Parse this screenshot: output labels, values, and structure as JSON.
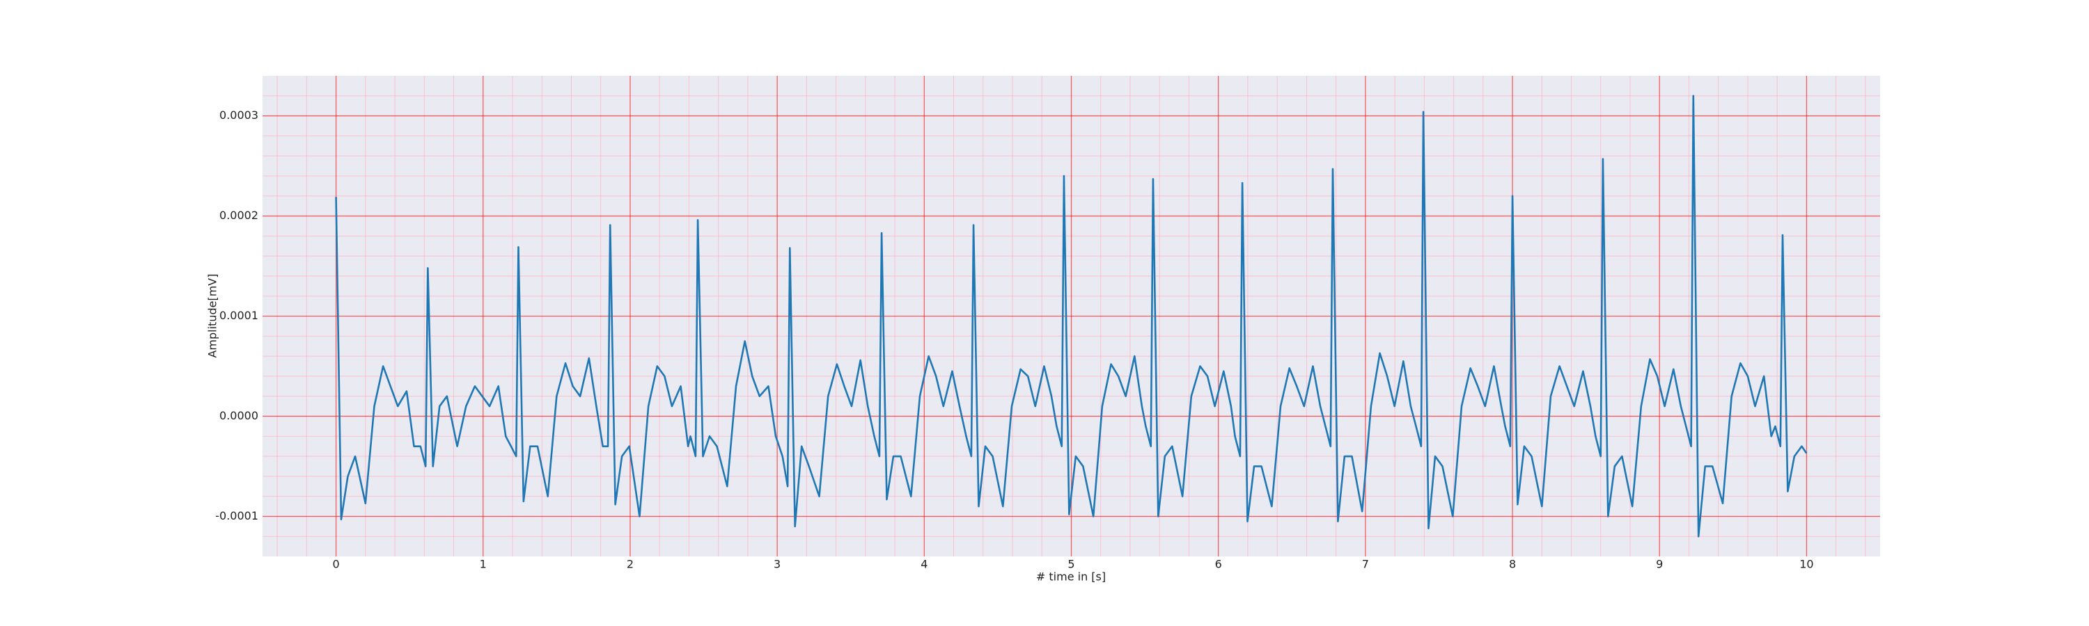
{
  "chart_data": {
    "type": "line",
    "xlabel": "# time in [s]",
    "ylabel": "Amplitude[mV]",
    "color": "#1f77b4",
    "grid": true,
    "minor_grid": true,
    "grid_color": "#ff0000",
    "minor_grid_color": "#ffb0c0",
    "background": "#eaeaf2",
    "xlim": [
      -0.5,
      10.5
    ],
    "xticks": [
      0,
      1,
      2,
      3,
      4,
      5,
      6,
      7,
      8,
      9,
      10
    ],
    "ylim": [
      -0.00014,
      0.00034
    ],
    "yticks": [
      -0.0001,
      {
        "value": 0,
        "label": "0.0000"
      },
      0.0001,
      0.0002,
      0.0003
    ],
    "x": [
      0,
      0.035,
      0.08,
      0.13,
      0.2,
      0.26,
      0.32,
      0.37,
      0.42,
      0.48,
      0.53,
      0.574,
      0.609,
      0.624,
      0.659,
      0.704,
      0.754,
      0.824,
      0.884,
      0.944,
      0.994,
      1.044,
      1.104,
      1.154,
      1.19,
      1.225,
      1.24,
      1.275,
      1.32,
      1.37,
      1.44,
      1.5,
      1.56,
      1.61,
      1.66,
      1.72,
      1.77,
      1.814,
      1.849,
      1.864,
      1.899,
      1.944,
      1.994,
      2.064,
      2.124,
      2.184,
      2.234,
      2.284,
      2.344,
      2.394,
      2.41,
      2.445,
      2.46,
      2.495,
      2.54,
      2.59,
      2.66,
      2.72,
      2.78,
      2.83,
      2.88,
      2.94,
      2.99,
      3.036,
      3.071,
      3.086,
      3.121,
      3.166,
      3.216,
      3.286,
      3.346,
      3.406,
      3.456,
      3.506,
      3.566,
      3.616,
      3.66,
      3.695,
      3.71,
      3.745,
      3.79,
      3.84,
      3.91,
      3.97,
      4.03,
      4.08,
      4.13,
      4.19,
      4.24,
      4.285,
      4.32,
      4.335,
      4.37,
      4.415,
      4.465,
      4.535,
      4.595,
      4.655,
      4.705,
      4.755,
      4.815,
      4.865,
      4.9,
      4.935,
      4.95,
      4.985,
      5.03,
      5.08,
      5.15,
      5.21,
      5.27,
      5.32,
      5.37,
      5.43,
      5.48,
      5.506,
      5.541,
      5.556,
      5.591,
      5.636,
      5.686,
      5.756,
      5.816,
      5.876,
      5.926,
      5.976,
      6.036,
      6.086,
      6.113,
      6.148,
      6.163,
      6.198,
      6.243,
      6.293,
      6.363,
      6.423,
      6.483,
      6.533,
      6.583,
      6.643,
      6.693,
      6.728,
      6.763,
      6.778,
      6.813,
      6.858,
      6.908,
      6.978,
      7.038,
      7.098,
      7.148,
      7.198,
      7.258,
      7.308,
      7.344,
      7.379,
      7.394,
      7.429,
      7.474,
      7.524,
      7.594,
      7.654,
      7.714,
      7.764,
      7.814,
      7.874,
      7.924,
      7.95,
      7.985,
      8.0,
      8.035,
      8.08,
      8.13,
      8.2,
      8.26,
      8.32,
      8.37,
      8.42,
      8.48,
      8.53,
      8.565,
      8.6,
      8.615,
      8.65,
      8.695,
      8.745,
      8.815,
      8.875,
      8.935,
      8.985,
      9.035,
      9.095,
      9.145,
      9.18,
      9.215,
      9.23,
      9.265,
      9.31,
      9.36,
      9.43,
      9.49,
      9.55,
      9.6,
      9.65,
      9.71,
      9.76,
      9.787,
      9.822,
      9.837,
      9.872,
      9.917,
      9.967,
      10.0
    ],
    "values": [
      0.000219,
      -0.000103,
      -6e-05,
      -4e-05,
      -8.7e-05,
      1e-05,
      5e-05,
      3e-05,
      1e-05,
      2.5e-05,
      -3e-05,
      -3e-05,
      -5e-05,
      0.000148,
      -5e-05,
      1e-05,
      2e-05,
      -3e-05,
      1e-05,
      3e-05,
      2e-05,
      1e-05,
      3e-05,
      -2e-05,
      -3e-05,
      -4e-05,
      0.000169,
      -8.5e-05,
      -3e-05,
      -3e-05,
      -8e-05,
      2e-05,
      5.3e-05,
      3e-05,
      2e-05,
      5.8e-05,
      1e-05,
      -3e-05,
      -3e-05,
      0.000191,
      -8.8e-05,
      -4e-05,
      -3e-05,
      -0.0001,
      1e-05,
      5e-05,
      4e-05,
      1e-05,
      3e-05,
      -3e-05,
      -2e-05,
      -4e-05,
      0.000196,
      -4e-05,
      -2e-05,
      -3e-05,
      -7e-05,
      3e-05,
      7.5e-05,
      4e-05,
      2e-05,
      3e-05,
      -2e-05,
      -4e-05,
      -7e-05,
      0.000168,
      -0.00011,
      -3e-05,
      -5e-05,
      -8e-05,
      2e-05,
      5.2e-05,
      3e-05,
      1e-05,
      5.6e-05,
      1e-05,
      -2e-05,
      -4e-05,
      0.000183,
      -8.3e-05,
      -4e-05,
      -4e-05,
      -8e-05,
      2e-05,
      6e-05,
      4e-05,
      1e-05,
      4.5e-05,
      1e-05,
      -2e-05,
      -4e-05,
      0.000191,
      -9e-05,
      -3e-05,
      -4e-05,
      -9e-05,
      1e-05,
      4.7e-05,
      4e-05,
      1e-05,
      5e-05,
      2e-05,
      -1e-05,
      -3e-05,
      0.00024,
      -9.8e-05,
      -4e-05,
      -5e-05,
      -0.0001,
      1e-05,
      5.2e-05,
      4e-05,
      2e-05,
      6e-05,
      1e-05,
      -1e-05,
      -3e-05,
      0.000237,
      -0.0001,
      -4e-05,
      -3e-05,
      -8e-05,
      2e-05,
      5e-05,
      4e-05,
      1e-05,
      4.5e-05,
      1e-05,
      -2e-05,
      -4e-05,
      0.000233,
      -0.000105,
      -5e-05,
      -5e-05,
      -9e-05,
      1e-05,
      4.8e-05,
      3e-05,
      1e-05,
      5e-05,
      1e-05,
      -1e-05,
      -3e-05,
      0.000247,
      -0.000105,
      -4e-05,
      -4e-05,
      -9.5e-05,
      1e-05,
      6.3e-05,
      4e-05,
      1e-05,
      5.5e-05,
      1e-05,
      -1e-05,
      -3e-05,
      0.000304,
      -0.000112,
      -4e-05,
      -5e-05,
      -0.0001,
      1e-05,
      4.8e-05,
      3e-05,
      1e-05,
      5e-05,
      1e-05,
      -1e-05,
      -3e-05,
      0.00022,
      -8.8e-05,
      -3e-05,
      -4e-05,
      -9e-05,
      2e-05,
      5e-05,
      3e-05,
      1e-05,
      4.5e-05,
      1e-05,
      -2e-05,
      -4e-05,
      0.000257,
      -0.0001,
      -5e-05,
      -4e-05,
      -9e-05,
      1e-05,
      5.7e-05,
      4e-05,
      1e-05,
      4.7e-05,
      1e-05,
      -1e-05,
      -3e-05,
      0.00032,
      -0.00012,
      -5e-05,
      -5e-05,
      -8.7e-05,
      2e-05,
      5.3e-05,
      4e-05,
      1e-05,
      4e-05,
      -2e-05,
      -1e-05,
      -3e-05,
      0.000181,
      -7.5e-05,
      -4e-05,
      -3e-05,
      -3.7e-05
    ]
  }
}
